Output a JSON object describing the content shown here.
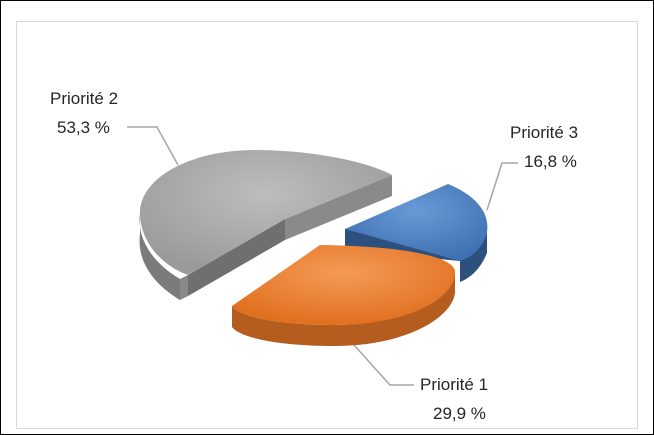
{
  "chart_data": {
    "type": "pie",
    "title": "",
    "legend": "none",
    "slices": [
      {
        "name": "Priorité 1",
        "value": 29.9,
        "label": "29,9 %",
        "color": "#ed7d31",
        "side_color": "#b55d1f"
      },
      {
        "name": "Priorité 2",
        "value": 53.3,
        "label": "53,3 %",
        "color": "#a5a5a5",
        "side_color": "#7b7b7b"
      },
      {
        "name": "Priorité 3",
        "value": 16.8,
        "label": "16,8 %",
        "color": "#4a7ec2",
        "side_color": "#2d507e"
      }
    ]
  }
}
